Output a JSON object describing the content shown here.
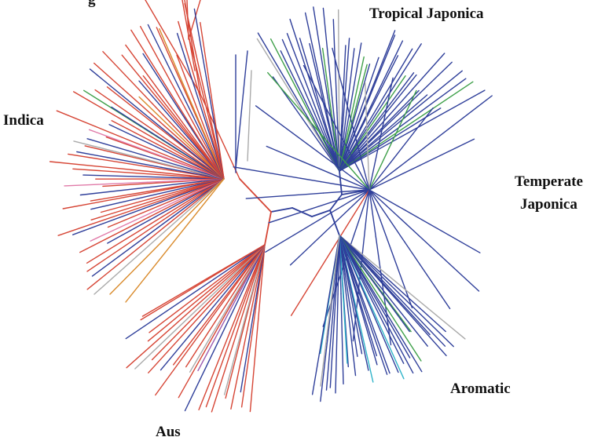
{
  "labels": {
    "top_partial": "g",
    "tropical_japonica": "Tropical Japonica",
    "indica": "Indica",
    "temperate_japonica_line1": "Temperate",
    "temperate_japonica_line2": "Japonica",
    "aromatic": "Aromatic",
    "aus": "Aus"
  },
  "colors": {
    "indica": "#d64535",
    "japonica": "#2f3f9a",
    "admixed": "#aaaaaa",
    "pink": "#e07aa8",
    "orange": "#d98a2b",
    "green": "#3fa04a",
    "cyan": "#2fb3c9",
    "purple": "#9b5bb0"
  }
}
